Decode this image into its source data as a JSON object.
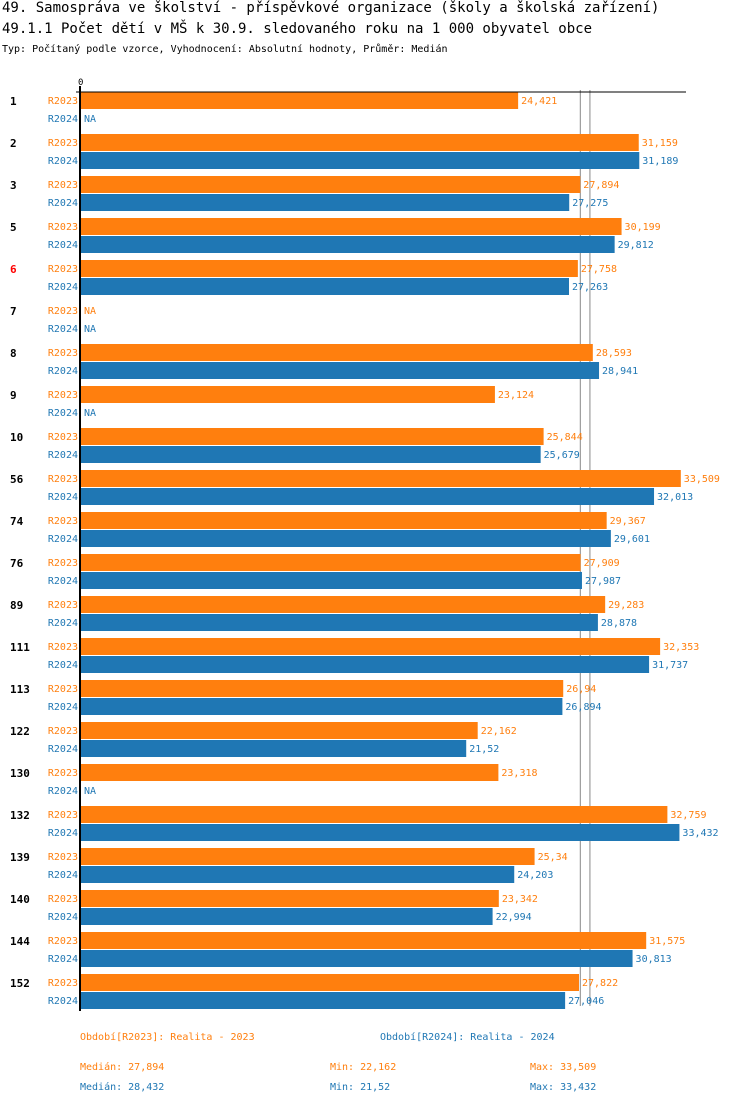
{
  "title": "49. Samospráva ve školství - příspěvkové organizace (školy a školská zařízení)",
  "subtitle": "49.1.1 Počet dětí v MŠ k 30.9. sledovaného roku na 1 000 obyvatel obce",
  "meta": "Typ: Počítaný podle vzorce, Vyhodnocení: Absolutní hodnoty, Průměr: Medián",
  "colors": {
    "r2023": "#ff7f0e",
    "r2024": "#1f77b4",
    "highlight": "#ff0000"
  },
  "chart_data": {
    "type": "bar",
    "orientation": "horizontal",
    "xlim": [
      0,
      33.6
    ],
    "x_tick_label": "0",
    "series_names": [
      "R2023",
      "R2024"
    ],
    "categories": [
      "1",
      "2",
      "3",
      "5",
      "6",
      "7",
      "8",
      "9",
      "10",
      "56",
      "74",
      "76",
      "89",
      "111",
      "113",
      "122",
      "130",
      "132",
      "139",
      "140",
      "144",
      "152"
    ],
    "highlighted_category": "6",
    "series": [
      {
        "name": "R2023",
        "labels": [
          "24,421",
          "31,159",
          "27,894",
          "30,199",
          "27,758",
          "NA",
          "28,593",
          "23,124",
          "25,844",
          "33,509",
          "29,367",
          "27,909",
          "29,283",
          "32,353",
          "26,94",
          "22,162",
          "23,318",
          "32,759",
          "25,34",
          "23,342",
          "31,575",
          "27,822"
        ]
      },
      {
        "name": "R2024",
        "labels": [
          "NA",
          "31,189",
          "27,275",
          "29,812",
          "27,263",
          "NA",
          "28,941",
          "NA",
          "25,679",
          "32,013",
          "29,601",
          "27,987",
          "28,878",
          "31,737",
          "26,894",
          "21,52",
          "NA",
          "33,432",
          "24,203",
          "22,994",
          "30,813",
          "27,046"
        ]
      }
    ],
    "median_lines": [
      27.894,
      28.432
    ]
  },
  "legend": {
    "r2023": "Období[R2023]: Realita - 2023",
    "r2024": "Období[R2024]: Realita - 2024",
    "median2023": "Medián: 27,894",
    "min2023": "Min: 22,162",
    "max2023": "Max: 33,509",
    "median2024": "Medián: 28,432",
    "min2024": "Min: 21,52",
    "max2024": "Max: 33,432"
  }
}
